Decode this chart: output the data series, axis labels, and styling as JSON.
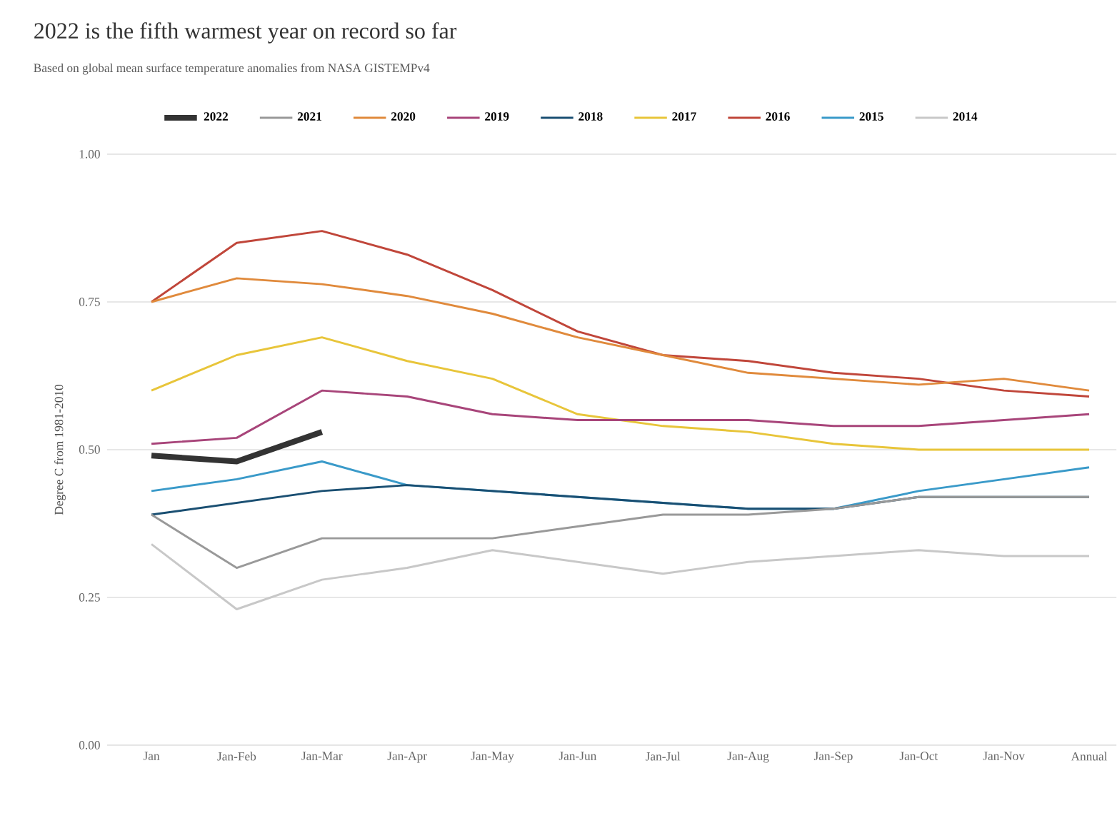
{
  "chart_data": {
    "type": "line",
    "title": "2022 is the fifth warmest year on record so far",
    "subtitle": "Based on global mean surface temperature anomalies from NASA GISTEMPv4",
    "ylabel": "Degree C from 1981-2010",
    "categories": [
      "Jan",
      "Jan-Feb",
      "Jan-Mar",
      "Jan-Apr",
      "Jan-May",
      "Jan-Jun",
      "Jan-Jul",
      "Jan-Aug",
      "Jan-Sep",
      "Jan-Oct",
      "Jan-Nov",
      "Annual"
    ],
    "series": [
      {
        "name": "2022",
        "color": "#333333",
        "values": [
          0.49,
          0.48,
          0.53,
          null,
          null,
          null,
          null,
          null,
          null,
          null,
          null,
          null
        ]
      },
      {
        "name": "2021",
        "color": "#999999",
        "values": [
          0.39,
          0.3,
          0.35,
          0.35,
          0.35,
          0.37,
          0.39,
          0.39,
          0.4,
          0.42,
          0.42,
          0.42
        ]
      },
      {
        "name": "2020",
        "color": "#e08a3c",
        "values": [
          0.75,
          0.79,
          0.78,
          0.76,
          0.73,
          0.69,
          0.66,
          0.63,
          0.62,
          0.61,
          0.62,
          0.6
        ]
      },
      {
        "name": "2019",
        "color": "#a8457a",
        "values": [
          0.51,
          0.52,
          0.6,
          0.59,
          0.56,
          0.55,
          0.55,
          0.55,
          0.54,
          0.54,
          0.55,
          0.56
        ]
      },
      {
        "name": "2018",
        "color": "#1a4f72",
        "values": [
          0.39,
          0.41,
          0.43,
          0.44,
          0.43,
          0.42,
          0.41,
          0.4,
          0.4,
          0.42,
          0.42,
          0.42
        ]
      },
      {
        "name": "2017",
        "color": "#e8c53a",
        "values": [
          0.6,
          0.66,
          0.69,
          0.65,
          0.62,
          0.56,
          0.54,
          0.53,
          0.51,
          0.5,
          0.5,
          0.5
        ]
      },
      {
        "name": "2016",
        "color": "#c0463a",
        "values": [
          0.75,
          0.85,
          0.87,
          0.83,
          0.77,
          0.7,
          0.66,
          0.65,
          0.63,
          0.62,
          0.6,
          0.59
        ]
      },
      {
        "name": "2015",
        "color": "#3a9ac9",
        "values": [
          0.43,
          0.45,
          0.48,
          0.44,
          0.43,
          0.42,
          0.41,
          0.4,
          0.4,
          0.43,
          0.45,
          0.47
        ]
      },
      {
        "name": "2014",
        "color": "#c8c8c8",
        "values": [
          0.34,
          0.23,
          0.28,
          0.3,
          0.33,
          0.31,
          0.29,
          0.31,
          0.32,
          0.33,
          0.32,
          0.32
        ]
      }
    ],
    "ylim": [
      0,
      1
    ],
    "yticks": [
      {
        "value": 0,
        "label": "0.00"
      },
      {
        "value": 0.25,
        "label": "0.25"
      },
      {
        "value": 0.5,
        "label": "0.50"
      },
      {
        "value": 0.75,
        "label": "0.75"
      },
      {
        "value": 1,
        "label": "1.00"
      }
    ],
    "grid": "y",
    "legend": "top",
    "marker": "none",
    "line_style": "solid"
  }
}
